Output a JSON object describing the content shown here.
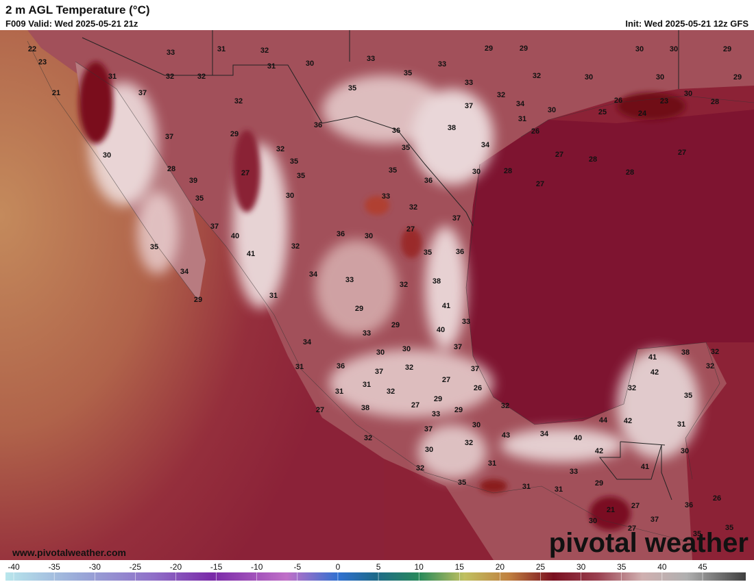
{
  "header": {
    "title": "2 m AGL Temperature (°C)",
    "valid": "F009 Valid: Wed 2025-05-21 21z",
    "init": "Init: Wed 2025-05-21 12z GFS"
  },
  "map": {
    "labels": [
      22,
      33,
      31,
      32,
      29,
      29,
      30,
      30,
      29,
      23,
      33,
      31,
      30,
      33,
      35,
      32,
      32,
      32,
      30,
      30,
      29,
      31,
      33,
      21,
      37,
      35,
      32,
      30,
      28,
      32,
      34,
      37,
      26,
      23,
      30,
      25,
      24,
      31,
      36,
      36,
      38,
      26,
      37,
      29,
      32,
      35,
      34,
      27,
      27,
      30,
      35,
      28,
      28,
      35,
      30,
      28,
      28,
      35,
      27,
      39,
      36,
      27,
      30,
      35,
      33,
      32,
      37,
      37,
      27,
      40,
      36,
      30,
      35,
      32,
      35,
      36,
      41,
      34,
      34,
      33,
      38,
      32,
      31,
      29,
      41,
      29,
      33,
      29,
      33,
      40,
      34,
      30,
      37,
      30,
      41,
      38,
      32,
      32,
      31,
      36,
      37,
      32,
      37,
      42,
      27,
      31,
      31,
      32,
      26,
      32,
      35,
      29,
      27,
      29,
      32,
      27,
      38,
      33,
      44,
      42,
      31,
      37,
      30,
      43,
      34,
      40,
      32,
      32,
      42,
      30,
      30,
      31,
      32,
      41,
      33,
      35,
      31,
      31,
      29,
      21,
      27,
      36,
      26,
      30,
      37,
      27,
      35,
      35
    ]
  },
  "footer": {
    "website": "www.pivotalweather.com",
    "logo": "pivotal weather"
  },
  "colorbar": {
    "ticks": [
      -40,
      -35,
      -30,
      -25,
      -20,
      -15,
      -10,
      -5,
      0,
      5,
      10,
      15,
      20,
      25,
      30,
      35,
      40,
      45
    ]
  }
}
